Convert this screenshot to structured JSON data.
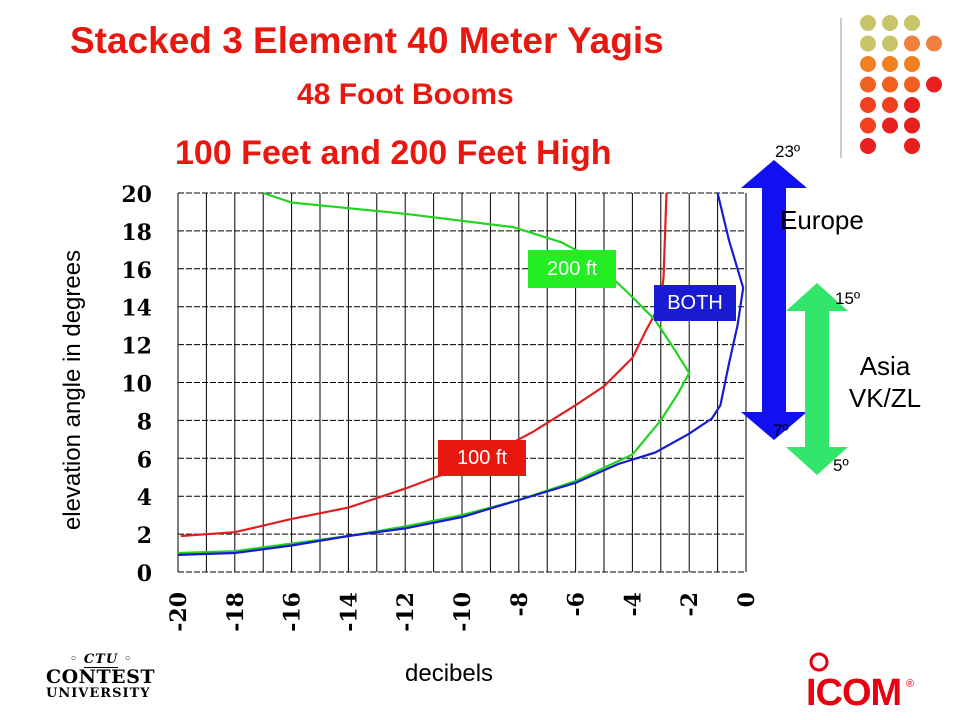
{
  "title": {
    "line1": "Stacked 3 Element 40 Meter Yagis",
    "line2": "48 Foot Booms",
    "line3": "100 Feet and 200 Feet High"
  },
  "chart_data": {
    "type": "line",
    "xlabel": "decibels",
    "ylabel": "elevation  angle in degrees",
    "xlim": [
      -20,
      0
    ],
    "ylim": [
      0,
      20
    ],
    "x_ticks": [
      "-20",
      "-18",
      "-16",
      "-14",
      "-12",
      "-10",
      "-8",
      "-6",
      "-4",
      "-2",
      "0"
    ],
    "y_ticks": [
      "0",
      "2",
      "4",
      "6",
      "8",
      "10",
      "12",
      "14",
      "16",
      "18",
      "20"
    ],
    "grid": true,
    "series": [
      {
        "name": "100 ft",
        "color": "#e02020",
        "points": [
          [
            -19.9,
            1.9
          ],
          [
            -18,
            2.1
          ],
          [
            -16,
            2.8
          ],
          [
            -14,
            3.4
          ],
          [
            -12,
            4.4
          ],
          [
            -10.4,
            5.3
          ],
          [
            -9,
            6.2
          ],
          [
            -7.5,
            7.4
          ],
          [
            -6,
            8.8
          ],
          [
            -5,
            9.8
          ],
          [
            -4,
            11.3
          ],
          [
            -3.5,
            12.8
          ],
          [
            -3,
            14.2
          ],
          [
            -2.9,
            15.6
          ],
          [
            -2.8,
            20
          ]
        ]
      },
      {
        "name": "200 ft",
        "color": "#22d422",
        "points": [
          [
            -20,
            1.0
          ],
          [
            -18,
            1.1
          ],
          [
            -16,
            1.5
          ],
          [
            -14,
            1.9
          ],
          [
            -12,
            2.4
          ],
          [
            -10,
            3.0
          ],
          [
            -8,
            3.8
          ],
          [
            -6,
            4.8
          ],
          [
            -4,
            6.2
          ],
          [
            -3,
            8.0
          ],
          [
            -2.4,
            9.4
          ],
          [
            -2,
            10.5
          ],
          [
            -2.5,
            11.7
          ],
          [
            -3.2,
            13.3
          ],
          [
            -4.2,
            14.8
          ],
          [
            -5.5,
            16.6
          ],
          [
            -6.5,
            17.4
          ],
          [
            -8.2,
            18.2
          ],
          [
            -12,
            18.9
          ],
          [
            -14,
            19.2
          ],
          [
            -16,
            19.5
          ],
          [
            -17,
            20
          ]
        ]
      },
      {
        "name": "BOTH",
        "color": "#1a1ad0",
        "points": [
          [
            -20,
            0.9
          ],
          [
            -18,
            1.0
          ],
          [
            -16,
            1.4
          ],
          [
            -14,
            1.9
          ],
          [
            -12,
            2.3
          ],
          [
            -10,
            2.9
          ],
          [
            -8,
            3.8
          ],
          [
            -6,
            4.7
          ],
          [
            -4.5,
            5.7
          ],
          [
            -3.2,
            6.3
          ],
          [
            -2,
            7.3
          ],
          [
            -1.2,
            8.1
          ],
          [
            -0.9,
            8.8
          ],
          [
            -0.6,
            11
          ],
          [
            -0.3,
            13
          ],
          [
            -0.1,
            15
          ],
          [
            -0.6,
            17.5
          ],
          [
            -1.0,
            20
          ]
        ]
      }
    ],
    "series_labels": [
      {
        "text": "100 ft",
        "bg": "#e8170f",
        "color": "#ffffff"
      },
      {
        "text": "200 ft",
        "bg": "#22ee22",
        "color": "#ffffff"
      },
      {
        "text": "BOTH",
        "bg": "#1a1ad0",
        "color": "#ffffff"
      }
    ],
    "annotations": {
      "europe": {
        "label": "Europe",
        "top": "23º",
        "bottom": "7º",
        "color": "#1010f0"
      },
      "asia": {
        "label_line1": "Asia",
        "label_line2": "VK/ZL",
        "top": "15º",
        "bottom": "5º",
        "color": "#33e56a"
      }
    }
  },
  "logos": {
    "left": {
      "badge": "CTU",
      "line1": "CONTEST",
      "line2": "UNIVERSITY"
    },
    "right": {
      "text": "ICOM",
      "mark": "®",
      "color": "#e60012"
    }
  }
}
